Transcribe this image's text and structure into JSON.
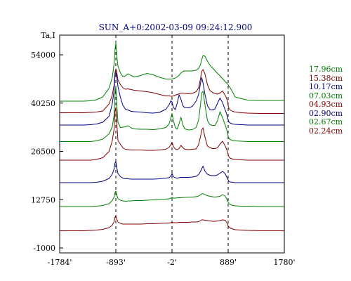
{
  "window": {
    "title": "SUN_A+0:2002-03-09 09:24:12.900"
  },
  "chart_data": {
    "type": "line",
    "title": "SUN_A+0:2002-03-09 09:24:12.900",
    "ylabel": "Ta,I",
    "xlabel": "",
    "xlim": [
      -1784,
      1780
    ],
    "ylim": [
      -1000,
      58000
    ],
    "x_ticks": [
      {
        "value": -1784,
        "label": "-1784'"
      },
      {
        "value": -893,
        "label": "-893'"
      },
      {
        "value": -2,
        "label": "-2'"
      },
      {
        "value": 889,
        "label": "889'"
      },
      {
        "value": 1780,
        "label": "1780'"
      }
    ],
    "y_ticks": [
      {
        "value": 54000,
        "label": "54000"
      },
      {
        "value": 40250,
        "label": "40250"
      },
      {
        "value": 26500,
        "label": "26500"
      },
      {
        "value": 12750,
        "label": "12750"
      },
      {
        "value": -1000,
        "label": "-1000"
      }
    ],
    "vertical_markers": [
      -893,
      -2,
      889
    ],
    "grid": false,
    "legend_position": "right",
    "colors": {
      "green": "#008000",
      "maroon": "#800000",
      "navy": "#000080",
      "axis": "#000000",
      "title": "#000080"
    },
    "x": [
      -1784,
      -1600,
      -1400,
      -1300,
      -1200,
      -1100,
      -1000,
      -950,
      -920,
      -905,
      -893,
      -880,
      -860,
      -820,
      -780,
      -740,
      -700,
      -650,
      -600,
      -500,
      -400,
      -300,
      -200,
      -100,
      -50,
      -20,
      -2,
      20,
      50,
      80,
      110,
      140,
      170,
      200,
      260,
      320,
      380,
      420,
      450,
      470,
      490,
      520,
      560,
      600,
      640,
      680,
      720,
      760,
      800,
      840,
      860,
      880,
      889,
      900,
      920,
      960,
      1000,
      1100,
      1200,
      1400,
      1600,
      1780
    ],
    "series": [
      {
        "name": "17.96cm",
        "color": "#008000",
        "values": [
          40800,
          40800,
          40800,
          40900,
          41200,
          42000,
          44500,
          47500,
          51500,
          55500,
          57500,
          53800,
          50800,
          48800,
          47800,
          48000,
          48600,
          48100,
          47700,
          48100,
          48700,
          48300,
          47600,
          47100,
          47100,
          47100,
          47100,
          47200,
          47400,
          47700,
          48200,
          48800,
          49200,
          49400,
          49400,
          49400,
          49600,
          50100,
          51200,
          52600,
          53800,
          53600,
          52200,
          51000,
          50300,
          49500,
          48700,
          48000,
          47200,
          46400,
          46100,
          45700,
          45500,
          45100,
          44600,
          43400,
          42000,
          41500,
          41100,
          41000,
          41000,
          41000
        ]
      },
      {
        "name": "15.38cm",
        "color": "#800000",
        "values": [
          37500,
          37500,
          37500,
          37600,
          37700,
          38000,
          40000,
          42500,
          45500,
          49000,
          50000,
          49200,
          46800,
          45500,
          44600,
          44200,
          44300,
          44100,
          43900,
          43700,
          43500,
          43200,
          42700,
          42300,
          42300,
          42200,
          42200,
          42300,
          42500,
          42700,
          42900,
          43100,
          43100,
          43000,
          42900,
          43000,
          43500,
          44600,
          47200,
          49300,
          49800,
          48600,
          45500,
          43800,
          43300,
          43000,
          42800,
          43100,
          43700,
          42500,
          41800,
          40700,
          39500,
          38800,
          38300,
          37900,
          37700,
          37500,
          37400,
          37300,
          37300,
          37300
        ]
      },
      {
        "name": "10.17cm",
        "color": "#000080",
        "values": [
          34000,
          34000,
          34000,
          34100,
          34300,
          34800,
          36500,
          40000,
          44000,
          48500,
          49000,
          48100,
          45000,
          41800,
          39600,
          38500,
          38300,
          37900,
          37800,
          37700,
          37500,
          37400,
          37600,
          38500,
          39700,
          40900,
          40600,
          39000,
          38400,
          40200,
          42600,
          41400,
          39500,
          39000,
          38900,
          39300,
          40800,
          42700,
          45900,
          47500,
          46000,
          42800,
          39500,
          38400,
          38300,
          38600,
          40200,
          41700,
          40400,
          38400,
          37400,
          36200,
          35500,
          34900,
          34600,
          34300,
          34200,
          34100,
          34000,
          34000,
          34000,
          34000
        ]
      },
      {
        "name": "07.03cm",
        "color": "#008000",
        "values": [
          29300,
          29300,
          29300,
          29300,
          29500,
          30000,
          31500,
          33500,
          37000,
          43000,
          45000,
          40500,
          34800,
          33300,
          33400,
          33500,
          33800,
          33200,
          32900,
          32800,
          32800,
          32700,
          32900,
          33300,
          34300,
          36000,
          37300,
          35300,
          33300,
          32800,
          34400,
          36200,
          34100,
          32900,
          32600,
          32700,
          33300,
          35400,
          39800,
          43200,
          43600,
          39800,
          35300,
          34100,
          33900,
          33900,
          35200,
          37800,
          36100,
          34100,
          33000,
          31800,
          30800,
          30300,
          29900,
          29600,
          29500,
          29400,
          29300,
          29300,
          29300,
          29300
        ]
      },
      {
        "name": "04.93cm",
        "color": "#800000",
        "values": [
          24000,
          24000,
          24000,
          24000,
          24200,
          24700,
          26500,
          29500,
          33000,
          38000,
          39000,
          35000,
          29600,
          28500,
          27500,
          27100,
          27000,
          26900,
          26900,
          26900,
          26800,
          26800,
          26900,
          27100,
          27600,
          28400,
          29100,
          27900,
          27200,
          27000,
          27300,
          28200,
          27600,
          27100,
          27000,
          27100,
          27200,
          28400,
          30700,
          32600,
          33200,
          30600,
          28000,
          27600,
          27300,
          27300,
          27500,
          28600,
          29400,
          28100,
          27300,
          26300,
          25600,
          25000,
          24600,
          24300,
          24200,
          24100,
          24000,
          24000,
          24000,
          24000
        ]
      },
      {
        "name": "02.90cm",
        "color": "#000080",
        "values": [
          17600,
          17600,
          17600,
          17600,
          17700,
          18000,
          18800,
          20000,
          21500,
          23200,
          23700,
          22000,
          20200,
          19300,
          18900,
          18700,
          18700,
          18600,
          18600,
          18600,
          18600,
          18600,
          18700,
          18900,
          19000,
          19500,
          20200,
          19300,
          19000,
          18900,
          19000,
          19100,
          19100,
          19100,
          19100,
          19200,
          19400,
          19900,
          20800,
          21600,
          22300,
          20900,
          20000,
          19700,
          19600,
          19600,
          19800,
          20300,
          20800,
          20200,
          19400,
          18800,
          18400,
          18000,
          17800,
          17700,
          17600,
          17600,
          17600,
          17600,
          17600,
          17600
        ]
      },
      {
        "name": "02.67cm",
        "color": "#008000",
        "values": [
          10800,
          10800,
          10800,
          10800,
          10900,
          11100,
          11600,
          12500,
          13500,
          14800,
          15200,
          14200,
          13100,
          12600,
          12400,
          12300,
          12400,
          12400,
          12500,
          12500,
          12600,
          12700,
          12800,
          12900,
          13000,
          13200,
          13400,
          13200,
          13200,
          13300,
          13300,
          13300,
          13400,
          13400,
          13500,
          13500,
          13600,
          13800,
          14100,
          14400,
          14500,
          14200,
          13900,
          13700,
          13600,
          13500,
          13600,
          13700,
          14200,
          13800,
          13200,
          12500,
          12000,
          11700,
          11400,
          11100,
          11000,
          10900,
          10900,
          10800,
          10800,
          10800
        ]
      },
      {
        "name": "02.24cm",
        "color": "#800000",
        "values": [
          3900,
          3900,
          3900,
          4000,
          4100,
          4300,
          4800,
          5500,
          6500,
          7800,
          8200,
          7300,
          6400,
          6000,
          5800,
          5800,
          5800,
          5800,
          5800,
          5800,
          5900,
          5900,
          6000,
          6100,
          6100,
          6200,
          6300,
          6200,
          6200,
          6200,
          6300,
          6300,
          6300,
          6300,
          6300,
          6400,
          6400,
          6500,
          6800,
          7000,
          7000,
          6900,
          6800,
          6700,
          6600,
          6600,
          6700,
          6800,
          7000,
          6900,
          6400,
          5800,
          5300,
          5000,
          4700,
          4400,
          4200,
          4100,
          4000,
          3900,
          3900,
          3900
        ]
      }
    ]
  }
}
